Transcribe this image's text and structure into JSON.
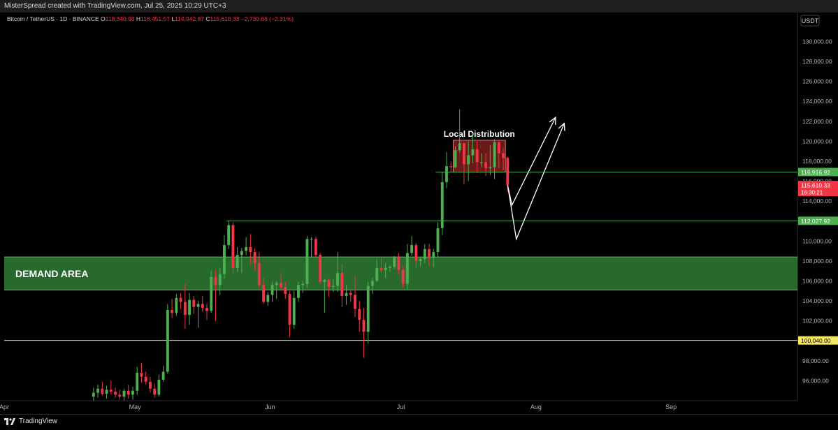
{
  "header": {
    "attribution": "MisterSpread created with TradingView.com, Jul 25, 2025 10:29 UTC+3"
  },
  "footer": {
    "brand": "TradingView"
  },
  "colors": {
    "up": "#4caf50",
    "down": "#f23645",
    "demand_fill": "#2e7d32",
    "distribution_fill": "#7f1d1d",
    "level_green": "#4caf50",
    "level_yellow": "#f5e663",
    "price_label_red": "#f23645"
  },
  "chart_data": {
    "type": "candlestick",
    "symbol_line": {
      "symbol": "Bitcoin / TetherUS · 1D · BINANCE",
      "open": "O118,340.98",
      "high": "H118,451.57",
      "low": "L114,942.87",
      "close": "C115,610.33",
      "change": "−2,730.66 (−2.31%)"
    },
    "currency": "USDT",
    "y_axis": {
      "range": [
        94000,
        131500
      ],
      "ticks": [
        "96,000.00",
        "98,000.00",
        "100,000.00",
        "102,000.00",
        "104,000.00",
        "106,000.00",
        "108,000.00",
        "110,000.00",
        "112,000.00",
        "114,000.00",
        "116,000.00",
        "118,000.00",
        "120,000.00",
        "122,000.00",
        "124,000.00",
        "126,000.00",
        "128,000.00",
        "130,000.00"
      ],
      "tick_values": [
        96000,
        98000,
        100000,
        102000,
        104000,
        106000,
        108000,
        110000,
        112000,
        114000,
        116000,
        118000,
        120000,
        122000,
        124000,
        126000,
        128000,
        130000
      ]
    },
    "x_axis": {
      "start": "2025-04-01",
      "end": "2025-09-30",
      "ticks": [
        {
          "label": "Apr",
          "date": "2025-04-01"
        },
        {
          "label": "May",
          "date": "2025-05-01"
        },
        {
          "label": "Jun",
          "date": "2025-06-01"
        },
        {
          "label": "Jul",
          "date": "2025-07-01"
        },
        {
          "label": "Aug",
          "date": "2025-08-01"
        },
        {
          "label": "Sep",
          "date": "2025-09-01"
        }
      ]
    },
    "candles": [
      {
        "date": "2025-04-21",
        "o": 94400,
        "h": 95300,
        "l": 94000,
        "c": 94800
      },
      {
        "date": "2025-04-22",
        "o": 94800,
        "h": 95600,
        "l": 94300,
        "c": 95200
      },
      {
        "date": "2025-04-23",
        "o": 95200,
        "h": 95900,
        "l": 94500,
        "c": 94700
      },
      {
        "date": "2025-04-24",
        "o": 94700,
        "h": 95500,
        "l": 94200,
        "c": 95100
      },
      {
        "date": "2025-04-25",
        "o": 95100,
        "h": 96000,
        "l": 94600,
        "c": 94900
      },
      {
        "date": "2025-04-26",
        "o": 94900,
        "h": 95300,
        "l": 94300,
        "c": 94600
      },
      {
        "date": "2025-04-27",
        "o": 94600,
        "h": 95100,
        "l": 94100,
        "c": 94400
      },
      {
        "date": "2025-04-28",
        "o": 94400,
        "h": 95200,
        "l": 94000,
        "c": 95000
      },
      {
        "date": "2025-04-29",
        "o": 95000,
        "h": 95600,
        "l": 94200,
        "c": 94600
      },
      {
        "date": "2025-04-30",
        "o": 94600,
        "h": 95400,
        "l": 94100,
        "c": 95000
      },
      {
        "date": "2025-05-01",
        "o": 95000,
        "h": 97400,
        "l": 94600,
        "c": 96800
      },
      {
        "date": "2025-05-02",
        "o": 96800,
        "h": 97800,
        "l": 95800,
        "c": 96400
      },
      {
        "date": "2025-05-03",
        "o": 96400,
        "h": 96900,
        "l": 95600,
        "c": 95900
      },
      {
        "date": "2025-05-04",
        "o": 95900,
        "h": 96400,
        "l": 94800,
        "c": 95200
      },
      {
        "date": "2025-05-05",
        "o": 95200,
        "h": 95700,
        "l": 94300,
        "c": 94600
      },
      {
        "date": "2025-05-06",
        "o": 94600,
        "h": 96600,
        "l": 94400,
        "c": 96100
      },
      {
        "date": "2025-05-07",
        "o": 96100,
        "h": 97500,
        "l": 95900,
        "c": 96900
      },
      {
        "date": "2025-05-08",
        "o": 96900,
        "h": 103700,
        "l": 96700,
        "c": 103100
      },
      {
        "date": "2025-05-09",
        "o": 103100,
        "h": 104200,
        "l": 102300,
        "c": 102800
      },
      {
        "date": "2025-05-10",
        "o": 102800,
        "h": 104700,
        "l": 102500,
        "c": 104300
      },
      {
        "date": "2025-05-11",
        "o": 104300,
        "h": 104800,
        "l": 103200,
        "c": 103900
      },
      {
        "date": "2025-05-12",
        "o": 103900,
        "h": 105700,
        "l": 101200,
        "c": 102600
      },
      {
        "date": "2025-05-13",
        "o": 102600,
        "h": 104800,
        "l": 101600,
        "c": 104100
      },
      {
        "date": "2025-05-14",
        "o": 104100,
        "h": 104500,
        "l": 102700,
        "c": 103400
      },
      {
        "date": "2025-05-15",
        "o": 103400,
        "h": 104000,
        "l": 101300,
        "c": 103700
      },
      {
        "date": "2025-05-16",
        "o": 103700,
        "h": 104500,
        "l": 102900,
        "c": 103300
      },
      {
        "date": "2025-05-17",
        "o": 103300,
        "h": 103700,
        "l": 102100,
        "c": 103000
      },
      {
        "date": "2025-05-18",
        "o": 103000,
        "h": 107000,
        "l": 102800,
        "c": 106400
      },
      {
        "date": "2025-05-19",
        "o": 106400,
        "h": 107100,
        "l": 102000,
        "c": 105600
      },
      {
        "date": "2025-05-20",
        "o": 105600,
        "h": 107300,
        "l": 104600,
        "c": 106700
      },
      {
        "date": "2025-05-21",
        "o": 106700,
        "h": 110600,
        "l": 106200,
        "c": 109600
      },
      {
        "date": "2025-05-22",
        "o": 109600,
        "h": 112000,
        "l": 109200,
        "c": 111600
      },
      {
        "date": "2025-05-23",
        "o": 111600,
        "h": 111900,
        "l": 106700,
        "c": 107300
      },
      {
        "date": "2025-05-24",
        "o": 107300,
        "h": 109400,
        "l": 106900,
        "c": 108600
      },
      {
        "date": "2025-05-25",
        "o": 108600,
        "h": 109300,
        "l": 106800,
        "c": 109000
      },
      {
        "date": "2025-05-26",
        "o": 109000,
        "h": 110400,
        "l": 108600,
        "c": 109400
      },
      {
        "date": "2025-05-27",
        "o": 109400,
        "h": 110700,
        "l": 107600,
        "c": 108900
      },
      {
        "date": "2025-05-28",
        "o": 108900,
        "h": 109300,
        "l": 107000,
        "c": 107800
      },
      {
        "date": "2025-05-29",
        "o": 107800,
        "h": 108900,
        "l": 105300,
        "c": 105600
      },
      {
        "date": "2025-05-30",
        "o": 105600,
        "h": 106300,
        "l": 103700,
        "c": 103900
      },
      {
        "date": "2025-05-31",
        "o": 103900,
        "h": 104900,
        "l": 103500,
        "c": 104600
      },
      {
        "date": "2025-06-01",
        "o": 104600,
        "h": 105900,
        "l": 103900,
        "c": 105600
      },
      {
        "date": "2025-06-02",
        "o": 105600,
        "h": 106000,
        "l": 104200,
        "c": 105800
      },
      {
        "date": "2025-06-03",
        "o": 105800,
        "h": 106800,
        "l": 105000,
        "c": 105400
      },
      {
        "date": "2025-06-04",
        "o": 105400,
        "h": 105900,
        "l": 104200,
        "c": 104700
      },
      {
        "date": "2025-06-05",
        "o": 104700,
        "h": 105000,
        "l": 100400,
        "c": 101600
      },
      {
        "date": "2025-06-06",
        "o": 101600,
        "h": 105000,
        "l": 101200,
        "c": 104300
      },
      {
        "date": "2025-06-07",
        "o": 104300,
        "h": 105900,
        "l": 103900,
        "c": 105600
      },
      {
        "date": "2025-06-08",
        "o": 105600,
        "h": 106000,
        "l": 104800,
        "c": 105700
      },
      {
        "date": "2025-06-09",
        "o": 105700,
        "h": 110500,
        "l": 105300,
        "c": 110200
      },
      {
        "date": "2025-06-10",
        "o": 110200,
        "h": 110400,
        "l": 108400,
        "c": 110200
      },
      {
        "date": "2025-06-11",
        "o": 110200,
        "h": 110400,
        "l": 108300,
        "c": 108600
      },
      {
        "date": "2025-06-12",
        "o": 108600,
        "h": 108800,
        "l": 105700,
        "c": 105900
      },
      {
        "date": "2025-06-13",
        "o": 105900,
        "h": 106200,
        "l": 102800,
        "c": 106100
      },
      {
        "date": "2025-06-14",
        "o": 106100,
        "h": 106200,
        "l": 104400,
        "c": 105400
      },
      {
        "date": "2025-06-15",
        "o": 105400,
        "h": 106200,
        "l": 104900,
        "c": 105500
      },
      {
        "date": "2025-06-16",
        "o": 105500,
        "h": 108900,
        "l": 104900,
        "c": 106800
      },
      {
        "date": "2025-06-17",
        "o": 106800,
        "h": 107700,
        "l": 103400,
        "c": 104500
      },
      {
        "date": "2025-06-18",
        "o": 104500,
        "h": 105600,
        "l": 103600,
        "c": 104800
      },
      {
        "date": "2025-06-19",
        "o": 104800,
        "h": 105300,
        "l": 103900,
        "c": 104600
      },
      {
        "date": "2025-06-20",
        "o": 104600,
        "h": 106500,
        "l": 102400,
        "c": 103200
      },
      {
        "date": "2025-06-21",
        "o": 103200,
        "h": 104000,
        "l": 100900,
        "c": 102100
      },
      {
        "date": "2025-06-22",
        "o": 102100,
        "h": 103300,
        "l": 98300,
        "c": 100900
      },
      {
        "date": "2025-06-23",
        "o": 100900,
        "h": 105900,
        "l": 99700,
        "c": 105500
      },
      {
        "date": "2025-06-24",
        "o": 105500,
        "h": 106300,
        "l": 104700,
        "c": 106000
      },
      {
        "date": "2025-06-25",
        "o": 106000,
        "h": 108200,
        "l": 105900,
        "c": 107300
      },
      {
        "date": "2025-06-26",
        "o": 107300,
        "h": 108300,
        "l": 106800,
        "c": 107100
      },
      {
        "date": "2025-06-27",
        "o": 107100,
        "h": 107800,
        "l": 106300,
        "c": 107300
      },
      {
        "date": "2025-06-28",
        "o": 107300,
        "h": 107600,
        "l": 106900,
        "c": 107400
      },
      {
        "date": "2025-06-29",
        "o": 107400,
        "h": 108500,
        "l": 107200,
        "c": 108400
      },
      {
        "date": "2025-06-30",
        "o": 108400,
        "h": 108800,
        "l": 106700,
        "c": 107100
      },
      {
        "date": "2025-07-01",
        "o": 107100,
        "h": 107500,
        "l": 105300,
        "c": 105700
      },
      {
        "date": "2025-07-02",
        "o": 105700,
        "h": 109700,
        "l": 105100,
        "c": 108800
      },
      {
        "date": "2025-07-03",
        "o": 108800,
        "h": 110500,
        "l": 108500,
        "c": 109600
      },
      {
        "date": "2025-07-04",
        "o": 109600,
        "h": 109800,
        "l": 107300,
        "c": 108000
      },
      {
        "date": "2025-07-05",
        "o": 108000,
        "h": 108400,
        "l": 107500,
        "c": 108200
      },
      {
        "date": "2025-07-06",
        "o": 108200,
        "h": 109700,
        "l": 107800,
        "c": 109200
      },
      {
        "date": "2025-07-07",
        "o": 109200,
        "h": 109700,
        "l": 107500,
        "c": 108300
      },
      {
        "date": "2025-07-08",
        "o": 108300,
        "h": 109200,
        "l": 107400,
        "c": 108900
      },
      {
        "date": "2025-07-09",
        "o": 108900,
        "h": 111900,
        "l": 108400,
        "c": 111300
      },
      {
        "date": "2025-07-10",
        "o": 111300,
        "h": 116900,
        "l": 110600,
        "c": 115900
      },
      {
        "date": "2025-07-11",
        "o": 115900,
        "h": 118900,
        "l": 115300,
        "c": 117500
      },
      {
        "date": "2025-07-12",
        "o": 117500,
        "h": 118000,
        "l": 116900,
        "c": 117400
      },
      {
        "date": "2025-07-13",
        "o": 117400,
        "h": 119500,
        "l": 117300,
        "c": 119100
      },
      {
        "date": "2025-07-14",
        "o": 119100,
        "h": 123200,
        "l": 118900,
        "c": 119800
      },
      {
        "date": "2025-07-15",
        "o": 119800,
        "h": 119900,
        "l": 115700,
        "c": 117700
      },
      {
        "date": "2025-07-16",
        "o": 117700,
        "h": 120000,
        "l": 116000,
        "c": 118600
      },
      {
        "date": "2025-07-17",
        "o": 118600,
        "h": 120800,
        "l": 117800,
        "c": 119200
      },
      {
        "date": "2025-07-18",
        "o": 119200,
        "h": 120000,
        "l": 116800,
        "c": 117900
      },
      {
        "date": "2025-07-19",
        "o": 117900,
        "h": 118800,
        "l": 117400,
        "c": 117900
      },
      {
        "date": "2025-07-20",
        "o": 117900,
        "h": 118800,
        "l": 116500,
        "c": 117300
      },
      {
        "date": "2025-07-21",
        "o": 117300,
        "h": 119600,
        "l": 116600,
        "c": 117400
      },
      {
        "date": "2025-07-22",
        "o": 117400,
        "h": 120200,
        "l": 116200,
        "c": 119900
      },
      {
        "date": "2025-07-23",
        "o": 119900,
        "h": 120000,
        "l": 117300,
        "c": 118800
      },
      {
        "date": "2025-07-24",
        "o": 118800,
        "h": 119300,
        "l": 117100,
        "c": 118300
      },
      {
        "date": "2025-07-25",
        "o": 118341,
        "h": 118452,
        "l": 114943,
        "c": 115610
      }
    ],
    "zones": [
      {
        "label": "DEMAND AREA",
        "from": 105100,
        "to": 108400,
        "color": "#2e7d32"
      },
      {
        "label": "Local Distribution",
        "from": 116900,
        "to": 120100,
        "x_from": "2025-07-13",
        "x_to": "2025-07-24",
        "color": "#7f1d1d"
      }
    ],
    "levels": [
      {
        "value": 116916.92,
        "label": "116,916.92",
        "color": "#4caf50",
        "x_from": "2025-07-09"
      },
      {
        "value": 112027.92,
        "label": "112,027.92",
        "color": "#4caf50",
        "x_from": "2025-05-22"
      },
      {
        "value": 100040.0,
        "label": "100,040.00",
        "color": "#f5e663",
        "x_from": "2025-04-01"
      }
    ],
    "current_price": {
      "value": 115610.33,
      "label": "115,610.33",
      "countdown": "16:30:21"
    },
    "projections": [
      {
        "points": [
          [
            "2025-07-25",
            115600
          ],
          [
            "2025-07-26",
            113600
          ],
          [
            "2025-08-05",
            122400
          ]
        ]
      },
      {
        "points": [
          [
            "2025-07-25",
            115600
          ],
          [
            "2025-07-27",
            110200
          ],
          [
            "2025-08-07",
            121800
          ]
        ]
      }
    ]
  }
}
